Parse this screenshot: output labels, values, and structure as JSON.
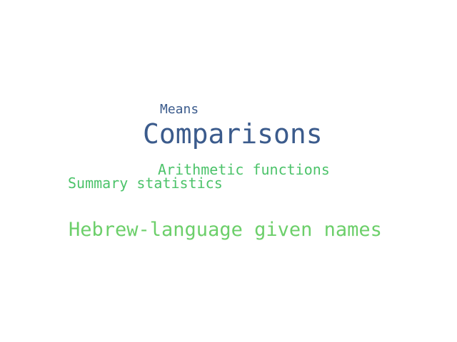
{
  "words": [
    {
      "text": "Means",
      "color": "#3b5b8c"
    },
    {
      "text": "Comparisons",
      "color": "#3b5b8c"
    },
    {
      "text": "Arithmetic functions",
      "color": "#4cc36a"
    },
    {
      "text": "Summary statistics",
      "color": "#4cc36a"
    },
    {
      "text": "Hebrew-language given names",
      "color": "#6ccf6a"
    }
  ]
}
